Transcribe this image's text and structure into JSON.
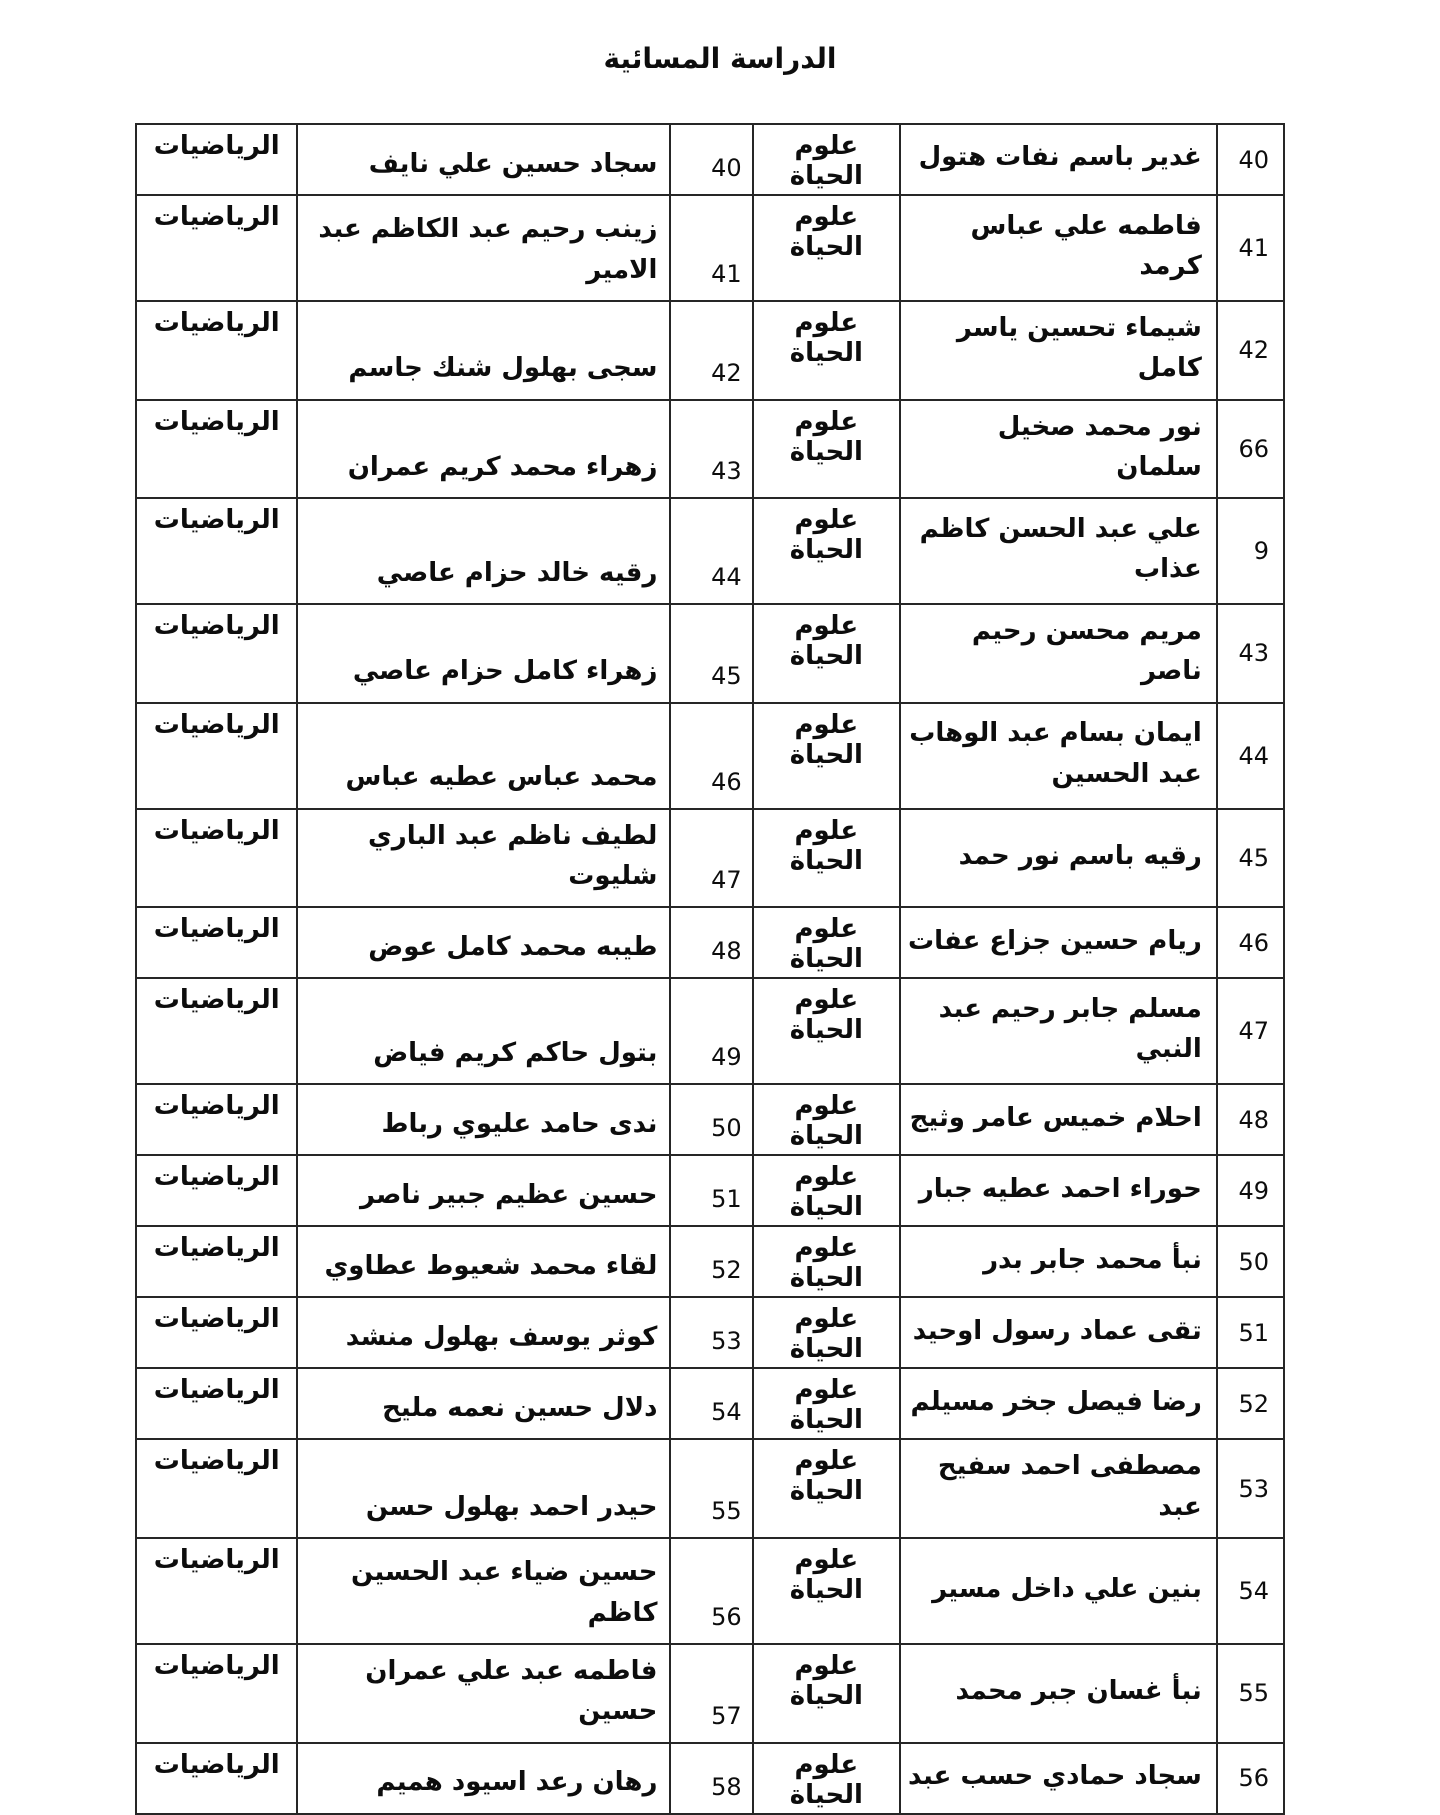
{
  "page": {
    "title": "الدراسة المسائية"
  },
  "table": {
    "subject_life": "علوم الحياة",
    "subject_math": "الرياضيات",
    "rows": [
      {
        "seat": "40",
        "name_life": "غدير باسم نفات هتول",
        "serial": "40",
        "name_math": "سجاد حسين علي نايف"
      },
      {
        "seat": "41",
        "name_life": "فاطمه علي عباس كرمد",
        "serial": "41",
        "name_math": "زينب رحيم عبد الكاظم عبد\nالامير"
      },
      {
        "seat": "42",
        "name_life": "شيماء تحسين ياسر كامل",
        "serial": "42",
        "name_math": "سجى بهلول شنك جاسم"
      },
      {
        "seat": "66",
        "name_life": "نور محمد صخيل سلمان",
        "serial": "43",
        "name_math": "زهراء محمد كريم عمران"
      },
      {
        "seat": "9",
        "name_life": "علي عبد الحسن كاظم\nعذاب",
        "serial": "44",
        "name_math": "رقيه خالد حزام عاصي"
      },
      {
        "seat": "43",
        "name_life": "مريم محسن رحيم ناصر",
        "serial": "45",
        "name_math": "زهراء كامل حزام عاصي"
      },
      {
        "seat": "44",
        "name_life": "ايمان بسام عبد الوهاب\nعبد الحسين",
        "serial": "46",
        "name_math": "محمد عباس عطيه عباس"
      },
      {
        "seat": "45",
        "name_life": "رقيه باسم نور حمد",
        "serial": "47",
        "name_math": "لطيف ناظم عبد الباري شليوت"
      },
      {
        "seat": "46",
        "name_life": "ريام حسين جزاع عفات",
        "serial": "48",
        "name_math": "طيبه محمد كامل عوض"
      },
      {
        "seat": "47",
        "name_life": "مسلم جابر رحيم عبد\nالنبي",
        "serial": "49",
        "name_math": "بتول حاكم كريم فياض"
      },
      {
        "seat": "48",
        "name_life": "احلام خميس عامر وثيج",
        "serial": "50",
        "name_math": "ندى حامد عليوي رباط"
      },
      {
        "seat": "49",
        "name_life": "حوراء احمد عطيه جبار",
        "serial": "51",
        "name_math": "حسين عظيم جبير ناصر"
      },
      {
        "seat": "50",
        "name_life": "نبأ محمد جابر بدر",
        "serial": "52",
        "name_math": "لقاء محمد شعيوط عطاوي"
      },
      {
        "seat": "51",
        "name_life": "تقى عماد رسول اوحيد",
        "serial": "53",
        "name_math": "كوثر يوسف بهلول منشد"
      },
      {
        "seat": "52",
        "name_life": "رضا فيصل جخر مسيلم",
        "serial": "54",
        "name_math": "دلال حسين نعمه مليح"
      },
      {
        "seat": "53",
        "name_life": "مصطفى احمد سفيح عبد",
        "serial": "55",
        "name_math": "حيدر احمد بهلول حسن"
      },
      {
        "seat": "54",
        "name_life": "بنين علي داخل مسير",
        "serial": "56",
        "name_math": "حسين ضياء عبد الحسين\nكاظم"
      },
      {
        "seat": "55",
        "name_life": "نبأ غسان جبر محمد",
        "serial": "57",
        "name_math": "فاطمه عبد علي عمران حسين"
      },
      {
        "seat": "56",
        "name_life": "سجاد حمادي حسب عبد",
        "serial": "58",
        "name_math": "رهان رعد اسيود هميم"
      }
    ]
  }
}
